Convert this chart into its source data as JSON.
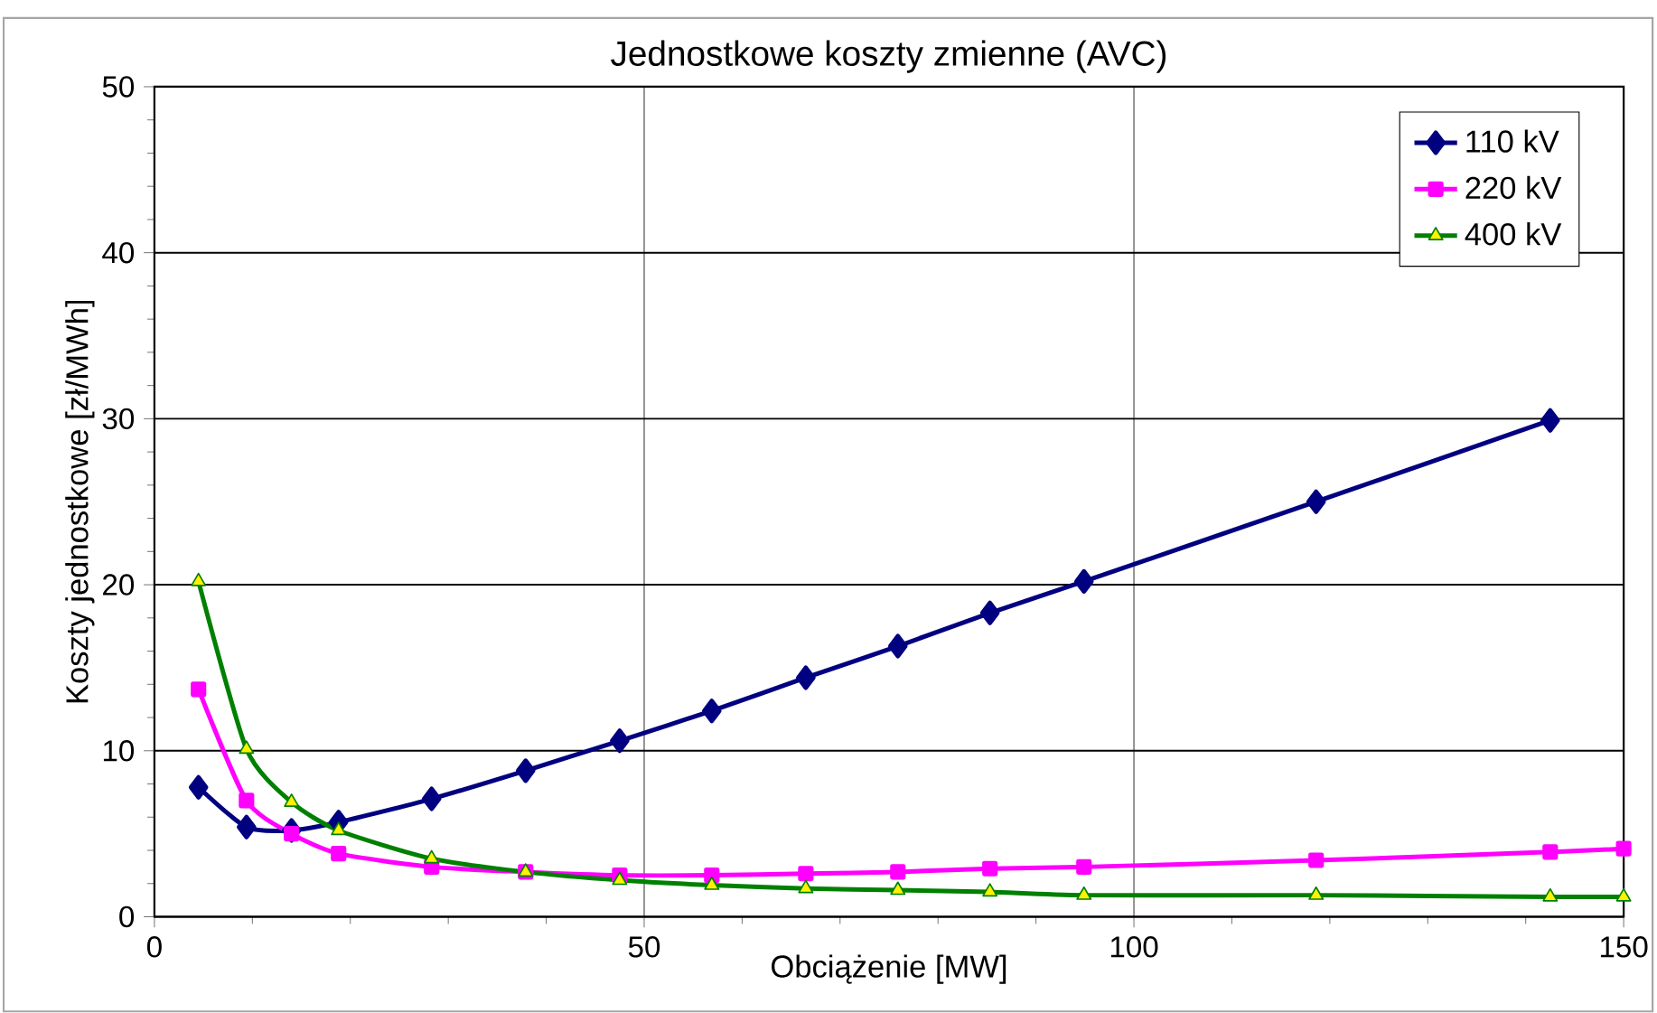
{
  "chart_data": {
    "type": "line",
    "title": "Jednostkowe koszty zmienne (AVC)",
    "xlabel": "Obciążenie  [MW]",
    "ylabel": "Koszty jednostkowe [zł/MWh]",
    "xlim": [
      0,
      150
    ],
    "ylim": [
      0,
      50
    ],
    "xticks": [
      0,
      50,
      100,
      150
    ],
    "yticks": [
      0,
      10,
      20,
      30,
      40,
      50
    ],
    "grid": true,
    "legend": "top right",
    "series": [
      {
        "name": "110 kV",
        "color": "#000080",
        "marker": "diamond",
        "x": [
          4.5,
          9.4,
          14,
          18.8,
          28.3,
          37.9,
          47.5,
          56.9,
          66.5,
          75.9,
          85.3,
          94.9,
          118.6,
          142.5
        ],
        "values": [
          7.8,
          5.4,
          5.2,
          5.7,
          7.1,
          8.8,
          10.6,
          12.4,
          14.4,
          16.3,
          18.3,
          20.2,
          25.0,
          29.9
        ]
      },
      {
        "name": "220 kV",
        "color": "#ff00ff",
        "marker": "square",
        "x": [
          4.5,
          9.4,
          14,
          18.8,
          28.3,
          37.9,
          47.5,
          56.9,
          66.5,
          75.9,
          85.3,
          94.9,
          118.6,
          142.5,
          150
        ],
        "values": [
          13.7,
          7.0,
          5.0,
          3.8,
          3.0,
          2.7,
          2.5,
          2.5,
          2.6,
          2.7,
          2.9,
          3.0,
          3.4,
          3.9,
          4.1
        ]
      },
      {
        "name": "400 kV",
        "color": "#008000",
        "marker": "triangle",
        "x": [
          4.5,
          9.4,
          14,
          18.8,
          28.3,
          37.9,
          47.5,
          56.9,
          66.5,
          75.9,
          85.3,
          94.9,
          118.6,
          142.5,
          150
        ],
        "values": [
          20.2,
          10.1,
          6.9,
          5.2,
          3.5,
          2.7,
          2.2,
          1.9,
          1.7,
          1.6,
          1.5,
          1.3,
          1.3,
          1.2,
          1.2
        ]
      }
    ]
  }
}
